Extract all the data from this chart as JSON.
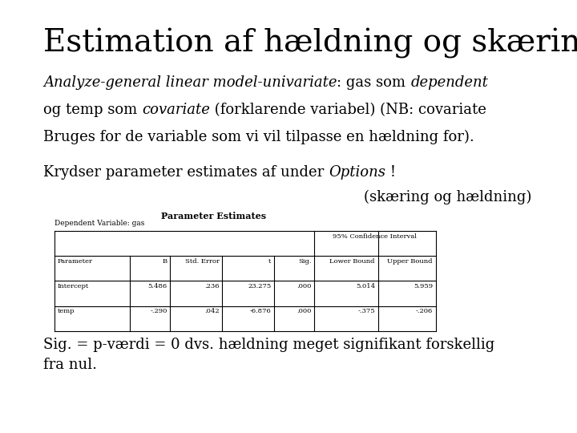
{
  "title": "Estimation af hældning og skæring",
  "title_fontsize": 28,
  "background_color": "#ffffff",
  "text_color": "#000000",
  "body_fontsize": 13,
  "annotation": "(skæring og hældning)",
  "table_title": "Parameter Estimates",
  "table_dep_var": "Dependent Variable: gas",
  "table_headers": [
    "Parameter",
    "B",
    "Std. Error",
    "t",
    "Sig.",
    "Lower Bound",
    "Upper Bound"
  ],
  "table_subheader": "95% Confidence Interval",
  "table_rows": [
    [
      "Intercept",
      "5.486",
      ".236",
      "23.275",
      ".000",
      "5.014",
      "5.959"
    ],
    [
      "temp",
      "-.290",
      ".042",
      "-6.876",
      ".000",
      "-.375",
      "-.206"
    ]
  ],
  "footer_text": "Sig. = p-værdi = 0 dvs. hældning meget signifikant forskellig\nfra nul.",
  "footer_fontsize": 13
}
